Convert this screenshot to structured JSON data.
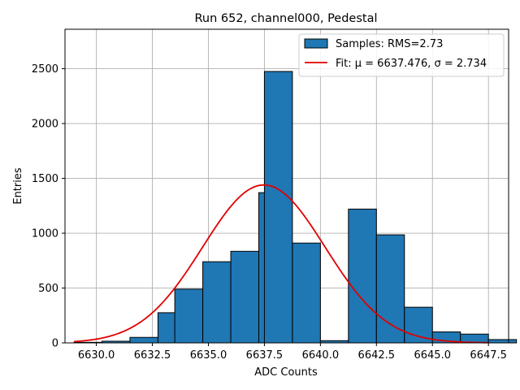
{
  "chart_data": {
    "type": "bar",
    "title": "Run 652, channel000, Pedestal",
    "xlabel": "ADC Counts",
    "ylabel": "Entries",
    "xlim": [
      6628.6,
      6648.4
    ],
    "ylim": [
      0,
      2860
    ],
    "xticks": [
      6630.0,
      6632.5,
      6635.0,
      6637.5,
      6640.0,
      6642.5,
      6645.0,
      6647.5
    ],
    "xtick_labels": [
      "6630.0",
      "6632.5",
      "6635.0",
      "6637.5",
      "6640.0",
      "6642.5",
      "6645.0",
      "6647.5"
    ],
    "yticks": [
      0,
      500,
      1000,
      1500,
      2000,
      2500
    ],
    "ytick_labels": [
      "0",
      "500",
      "1000",
      "1500",
      "2000",
      "2500"
    ],
    "grid": true,
    "bin_width": 1.25,
    "bins": [
      {
        "left": 6629.0,
        "value": 5
      },
      {
        "left": 6630.25,
        "value": 15
      },
      {
        "left": 6631.5,
        "value": 50
      },
      {
        "left": 6632.75,
        "value": 275
      },
      {
        "left": 6633.5,
        "value": 490
      },
      {
        "left": 6634.75,
        "value": 740
      },
      {
        "left": 6636.0,
        "value": 835
      },
      {
        "left": 6637.25,
        "value": 1370
      },
      {
        "left": 6637.5,
        "value": 2475
      },
      {
        "left": 6638.75,
        "value": 910
      },
      {
        "left": 6640.0,
        "value": 20
      },
      {
        "left": 6641.25,
        "value": 1220
      },
      {
        "left": 6642.5,
        "value": 985
      },
      {
        "left": 6643.75,
        "value": 325
      },
      {
        "left": 6645.0,
        "value": 100
      },
      {
        "left": 6646.25,
        "value": 80
      },
      {
        "left": 6647.5,
        "value": 30
      }
    ],
    "fit": {
      "mu": 6637.476,
      "sigma": 2.734,
      "amplitude": 1440,
      "x_range": [
        6629.0,
        6647.5
      ]
    },
    "legend": {
      "placement": "top-right",
      "entries": [
        {
          "label": "Samples: RMS=2.73",
          "kind": "patch"
        },
        {
          "label": "Fit: μ = 6637.476, σ = 2.734",
          "kind": "line"
        }
      ]
    },
    "colors": {
      "bar_fill": "#1f77b4",
      "bar_edge": "#000000",
      "fit_line": "#e00000",
      "grid": "#b0b0b0",
      "axes": "#000000"
    }
  }
}
